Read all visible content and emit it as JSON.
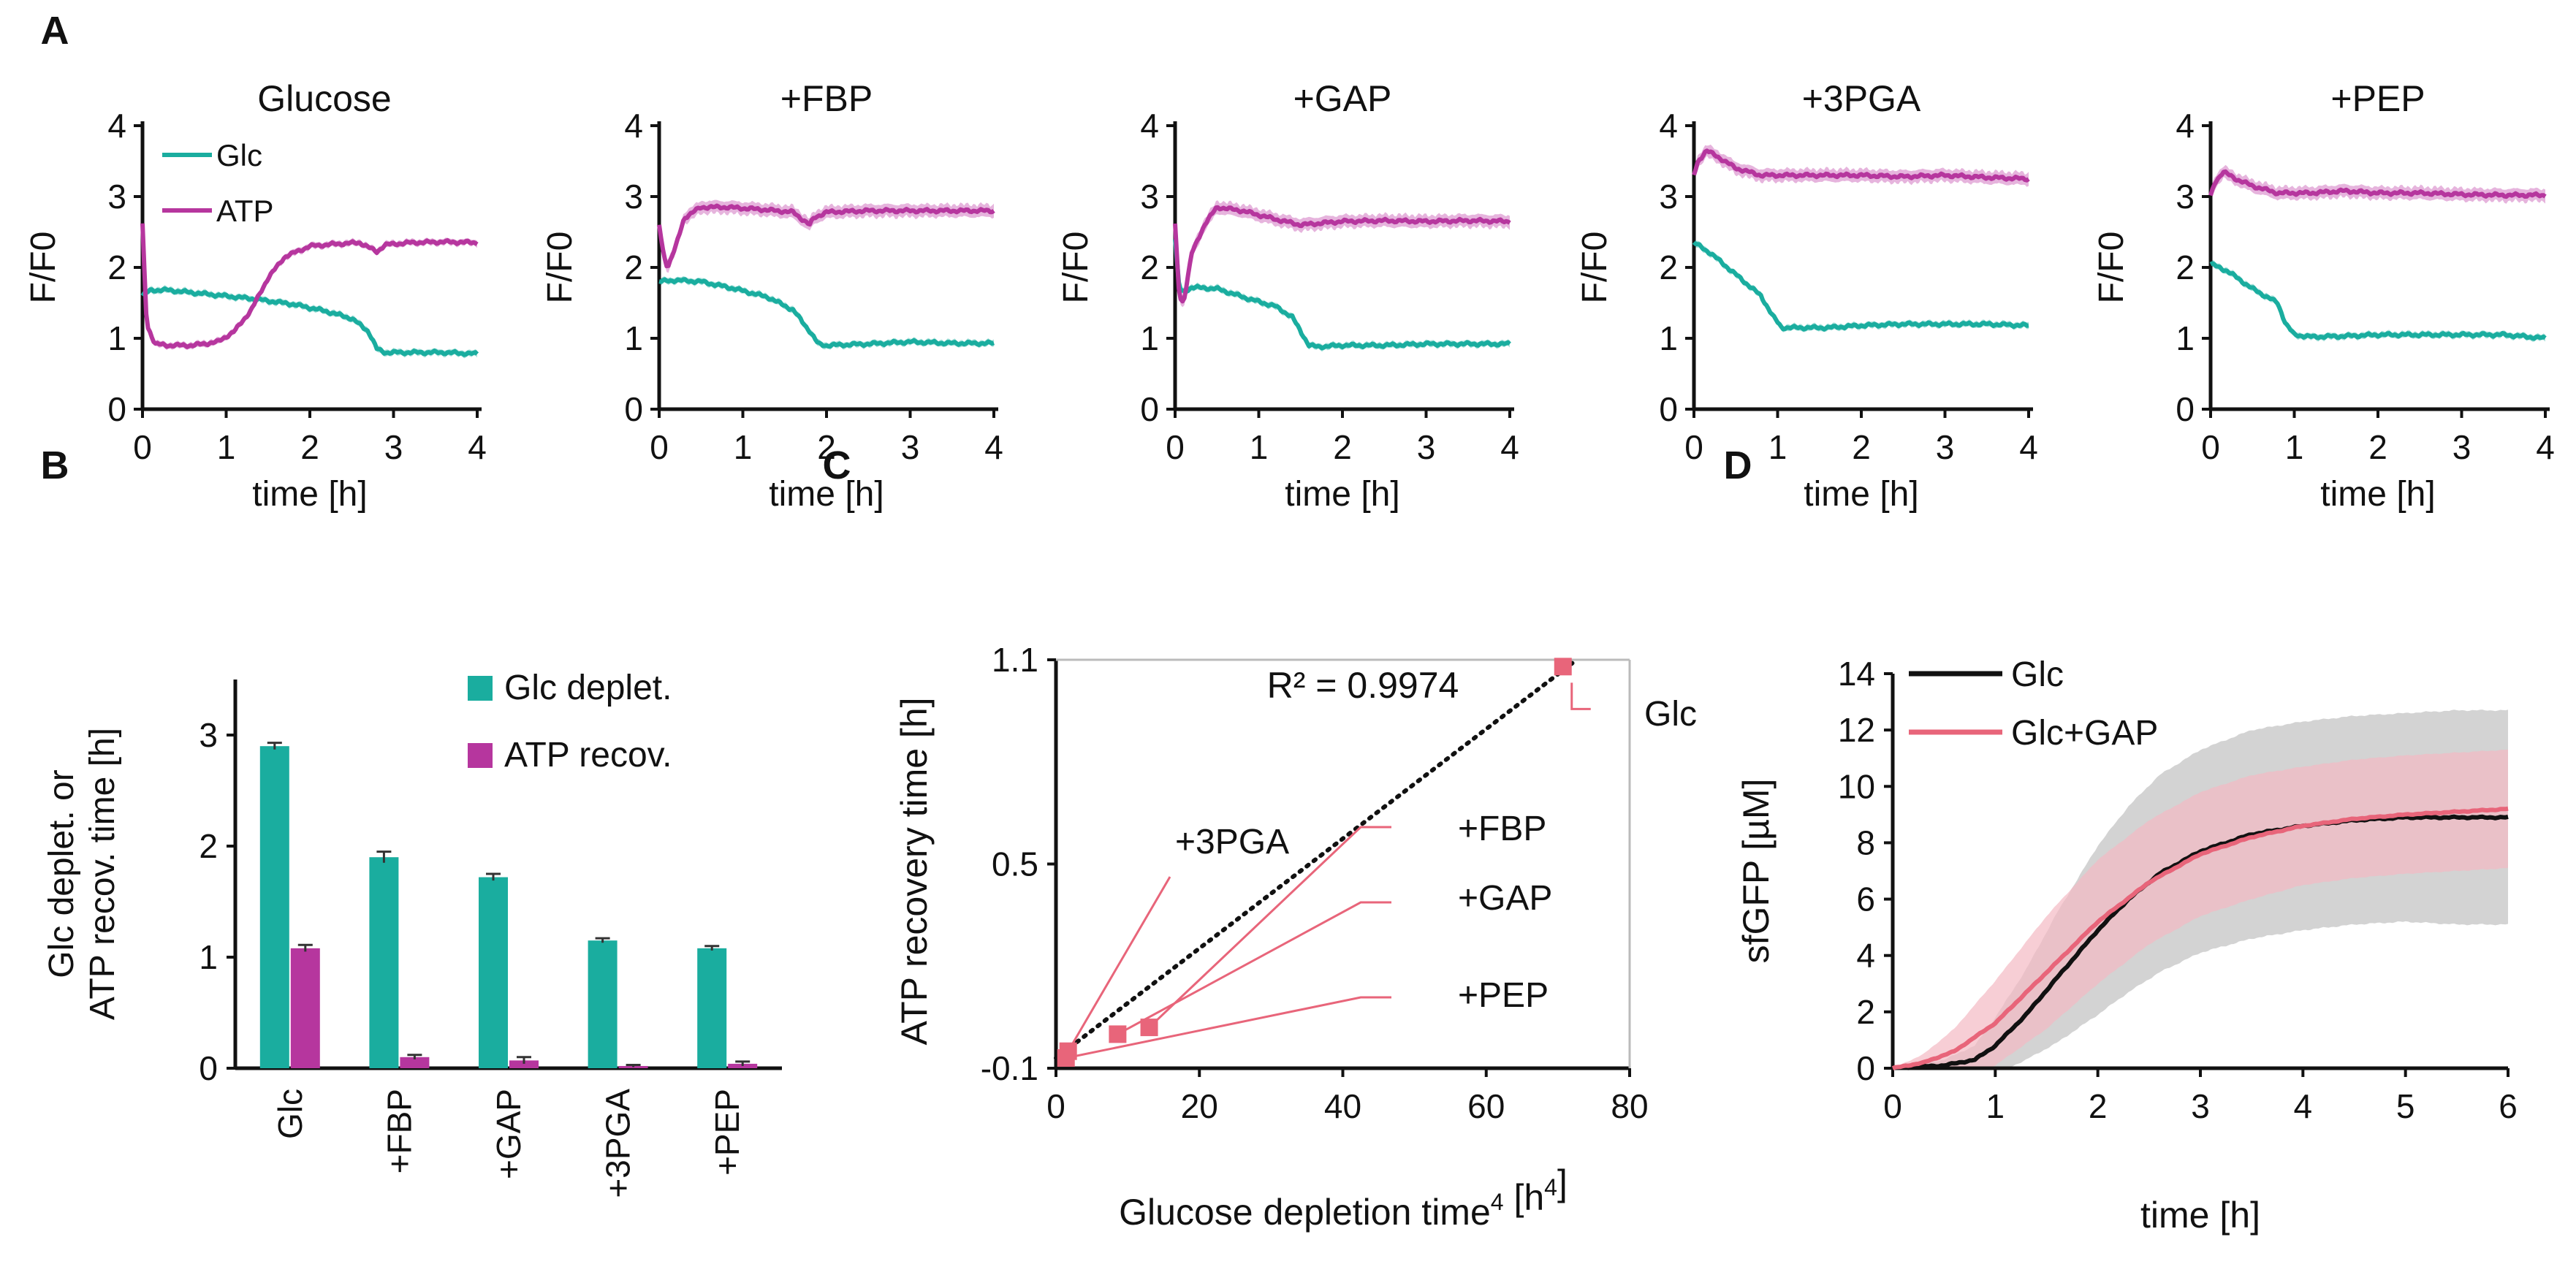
{
  "figure_title": "",
  "colors": {
    "glc": "#1aad9f",
    "atp": "#b6369e",
    "atp_band": "#d98ccb",
    "glc_band": "#7fd3ca",
    "salmon": "#e8657a",
    "salmon_band": "#f3b9c3",
    "black": "#111111",
    "grey_band": "#c8c8c8"
  },
  "chart_data": [
    {
      "panel": "A",
      "type": "line",
      "title": "Glucose",
      "xlabel": "time [h]",
      "ylabel": "F/F0",
      "xlim": [
        0,
        4
      ],
      "ylim": [
        0,
        4
      ],
      "xticks": [
        "0",
        "1",
        "2",
        "3",
        "4"
      ],
      "yticks": [
        "0",
        "1",
        "2",
        "3",
        "4"
      ],
      "legend": [
        "Glc",
        "ATP"
      ],
      "series": [
        {
          "name": "Glc",
          "x": [
            0,
            0.1,
            0.3,
            0.8,
            1.3,
            1.8,
            2.2,
            2.5,
            2.7,
            2.8,
            2.9,
            3.2,
            3.6,
            4.0
          ],
          "y": [
            1.6,
            1.68,
            1.68,
            1.62,
            1.56,
            1.48,
            1.38,
            1.28,
            1.1,
            0.85,
            0.8,
            0.8,
            0.8,
            0.78
          ]
        },
        {
          "name": "ATP",
          "x": [
            0,
            0.05,
            0.15,
            0.3,
            0.6,
            0.9,
            1.1,
            1.3,
            1.5,
            1.7,
            2.0,
            2.3,
            2.6,
            2.8,
            2.9,
            3.2,
            3.6,
            4.0
          ],
          "y": [
            2.6,
            1.2,
            0.92,
            0.9,
            0.9,
            0.95,
            1.1,
            1.4,
            1.85,
            2.15,
            2.3,
            2.33,
            2.35,
            2.22,
            2.32,
            2.35,
            2.36,
            2.35
          ]
        }
      ]
    },
    {
      "panel": "A",
      "type": "line",
      "title": "+FBP",
      "xlabel": "time [h]",
      "ylabel": "F/F0",
      "xlim": [
        0,
        4
      ],
      "ylim": [
        0,
        4
      ],
      "xticks": [
        "0",
        "1",
        "2",
        "3",
        "4"
      ],
      "yticks": [
        "0",
        "1",
        "2",
        "3",
        "4"
      ],
      "series": [
        {
          "name": "Glc",
          "x": [
            0,
            0.2,
            0.5,
            0.9,
            1.3,
            1.6,
            1.8,
            1.9,
            2.0,
            2.5,
            3.0,
            3.5,
            4.0
          ],
          "y": [
            1.8,
            1.82,
            1.8,
            1.7,
            1.58,
            1.4,
            1.1,
            0.92,
            0.9,
            0.92,
            0.95,
            0.93,
            0.93
          ]
        },
        {
          "name": "ATP",
          "x": [
            0,
            0.05,
            0.1,
            0.2,
            0.3,
            0.5,
            0.8,
            1.2,
            1.6,
            1.8,
            1.85,
            2.0,
            2.5,
            3.0,
            3.5,
            4.0
          ],
          "y": [
            2.6,
            2.2,
            2.0,
            2.3,
            2.7,
            2.85,
            2.85,
            2.82,
            2.78,
            2.6,
            2.7,
            2.78,
            2.8,
            2.8,
            2.8,
            2.8
          ]
        }
      ]
    },
    {
      "panel": "A",
      "type": "line",
      "title": "+GAP",
      "xlabel": "time [h]",
      "ylabel": "F/F0",
      "xlim": [
        0,
        4
      ],
      "ylim": [
        0,
        4
      ],
      "xticks": [
        "0",
        "1",
        "2",
        "3",
        "4"
      ],
      "yticks": [
        "0",
        "1",
        "2",
        "3",
        "4"
      ],
      "series": [
        {
          "name": "Glc",
          "x": [
            0,
            0.05,
            0.1,
            0.2,
            0.5,
            0.9,
            1.2,
            1.4,
            1.6,
            1.7,
            2.0,
            2.5,
            3.0,
            3.5,
            4.0
          ],
          "y": [
            2.4,
            1.7,
            1.65,
            1.72,
            1.7,
            1.55,
            1.45,
            1.3,
            0.9,
            0.88,
            0.9,
            0.9,
            0.92,
            0.92,
            0.92
          ]
        },
        {
          "name": "ATP",
          "x": [
            0,
            0.05,
            0.1,
            0.2,
            0.35,
            0.5,
            0.8,
            1.2,
            1.5,
            2.0,
            2.5,
            3.0,
            3.5,
            4.0
          ],
          "y": [
            2.6,
            1.6,
            1.5,
            2.2,
            2.6,
            2.85,
            2.8,
            2.68,
            2.6,
            2.65,
            2.66,
            2.65,
            2.66,
            2.65
          ]
        }
      ]
    },
    {
      "panel": "A",
      "type": "line",
      "title": "+3PGA",
      "xlabel": "time [h]",
      "ylabel": "F/F0",
      "xlim": [
        0,
        4
      ],
      "ylim": [
        0,
        4
      ],
      "xticks": [
        "0",
        "1",
        "2",
        "3",
        "4"
      ],
      "yticks": [
        "0",
        "1",
        "2",
        "3",
        "4"
      ],
      "series": [
        {
          "name": "Glc",
          "x": [
            0,
            0.2,
            0.5,
            0.8,
            0.95,
            1.05,
            1.2,
            1.6,
            2.0,
            2.5,
            3.0,
            3.5,
            4.0
          ],
          "y": [
            2.35,
            2.2,
            1.9,
            1.6,
            1.3,
            1.15,
            1.15,
            1.15,
            1.18,
            1.2,
            1.2,
            1.2,
            1.18
          ]
        },
        {
          "name": "ATP",
          "x": [
            0,
            0.05,
            0.15,
            0.3,
            0.5,
            0.8,
            1.2,
            1.6,
            2.0,
            2.5,
            3.0,
            3.5,
            4.0
          ],
          "y": [
            3.3,
            3.5,
            3.65,
            3.55,
            3.4,
            3.3,
            3.3,
            3.3,
            3.3,
            3.28,
            3.3,
            3.27,
            3.25
          ]
        }
      ]
    },
    {
      "panel": "A",
      "type": "line",
      "title": "+PEP",
      "xlabel": "time [h]",
      "ylabel": "F/F0",
      "xlim": [
        0,
        4
      ],
      "ylim": [
        0,
        4
      ],
      "xticks": [
        "0",
        "1",
        "2",
        "3",
        "4"
      ],
      "yticks": [
        "0",
        "1",
        "2",
        "3",
        "4"
      ],
      "series": [
        {
          "name": "Glc",
          "x": [
            0,
            0.2,
            0.5,
            0.8,
            0.9,
            1.0,
            1.2,
            1.6,
            2.0,
            2.5,
            3.0,
            3.5,
            4.0
          ],
          "y": [
            2.05,
            1.95,
            1.7,
            1.5,
            1.2,
            1.05,
            1.02,
            1.03,
            1.05,
            1.05,
            1.05,
            1.05,
            1.0
          ]
        },
        {
          "name": "ATP",
          "x": [
            0,
            0.05,
            0.15,
            0.3,
            0.5,
            0.8,
            1.2,
            1.6,
            2.0,
            2.5,
            3.0,
            3.5,
            4.0
          ],
          "y": [
            3.0,
            3.2,
            3.35,
            3.25,
            3.15,
            3.05,
            3.05,
            3.08,
            3.05,
            3.05,
            3.03,
            3.02,
            3.02
          ]
        }
      ]
    },
    {
      "panel": "B",
      "type": "bar",
      "ylabel_line1": "Glc deplet. or",
      "ylabel_line2": "ATP recov. time [h]",
      "categories": [
        "Glc",
        "+FBP",
        "+GAP",
        "+3PGA",
        "+PEP"
      ],
      "ylim": [
        0,
        3.5
      ],
      "yticks": [
        "0",
        "1",
        "2",
        "3"
      ],
      "series": [
        {
          "name": "Glc deplet.",
          "values": [
            2.9,
            1.9,
            1.72,
            1.15,
            1.08
          ],
          "errors": [
            0.03,
            0.05,
            0.03,
            0.02,
            0.02
          ]
        },
        {
          "name": "ATP recov.",
          "values": [
            1.08,
            0.1,
            0.07,
            0.02,
            0.04
          ],
          "errors": [
            0.03,
            0.02,
            0.03,
            0.01,
            0.02
          ]
        }
      ]
    },
    {
      "panel": "C",
      "type": "scatter",
      "xlabel": "Glucose depletion time",
      "xlabel_sup": "4",
      "xlabel_unit": " [h",
      "xlabel_unit_sup": "4",
      "xlabel_end": "]",
      "ylabel": "ATP recovery time [h]",
      "xlim": [
        0,
        80
      ],
      "ylim": [
        -0.1,
        1.1
      ],
      "xticks": [
        "0",
        "20",
        "40",
        "60",
        "80"
      ],
      "yticks": [
        "-0.1",
        "0.5",
        "1.1"
      ],
      "r2_label": "R² = 0.9974",
      "points": [
        {
          "label": "+3PGA",
          "x": 1.7,
          "y": -0.05
        },
        {
          "label": "+PEP",
          "x": 1.4,
          "y": -0.07
        },
        {
          "label": "+GAP",
          "x": 8.6,
          "y": 0.0
        },
        {
          "label": "+FBP",
          "x": 13.0,
          "y": 0.02
        },
        {
          "label": "Glc",
          "x": 70.7,
          "y": 1.08
        }
      ],
      "trendline": {
        "x": [
          0,
          72
        ],
        "y": [
          -0.07,
          1.09
        ]
      }
    },
    {
      "panel": "D",
      "type": "line",
      "xlabel": "time [h]",
      "ylabel": "sfGFP [µM]",
      "xlim": [
        0,
        6
      ],
      "ylim": [
        0,
        14
      ],
      "xticks": [
        "0",
        "1",
        "2",
        "3",
        "4",
        "5",
        "6"
      ],
      "yticks": [
        "0",
        "2",
        "4",
        "6",
        "8",
        "10",
        "12",
        "14"
      ],
      "legend": [
        "Glc",
        "Glc+GAP"
      ],
      "series": [
        {
          "name": "Glc",
          "x": [
            0,
            0.5,
            0.8,
            1.0,
            1.3,
            1.6,
            2.0,
            2.3,
            2.6,
            3.0,
            3.5,
            4.0,
            4.5,
            5.0,
            5.5,
            6.0
          ],
          "y": [
            0,
            0.1,
            0.3,
            0.8,
            1.9,
            3.2,
            4.9,
            6.0,
            6.9,
            7.7,
            8.3,
            8.6,
            8.8,
            8.9,
            8.9,
            8.9
          ],
          "error": [
            0,
            0.2,
            0.5,
            1.0,
            1.6,
            2.3,
            3.0,
            3.3,
            3.5,
            3.6,
            3.7,
            3.7,
            3.7,
            3.7,
            3.8,
            3.8
          ]
        },
        {
          "name": "Glc+GAP",
          "x": [
            0,
            0.3,
            0.6,
            1.0,
            1.5,
            2.0,
            2.5,
            3.0,
            3.5,
            4.0,
            4.5,
            5.0,
            5.5,
            6.0
          ],
          "y": [
            0,
            0.2,
            0.6,
            1.6,
            3.4,
            5.2,
            6.6,
            7.6,
            8.2,
            8.6,
            8.85,
            9.0,
            9.1,
            9.2
          ],
          "error": [
            0,
            0.3,
            0.8,
            1.5,
            2.0,
            2.2,
            2.2,
            2.2,
            2.2,
            2.1,
            2.1,
            2.1,
            2.1,
            2.1
          ]
        }
      ]
    }
  ],
  "panel_labels": [
    "A",
    "B",
    "C",
    "D"
  ]
}
